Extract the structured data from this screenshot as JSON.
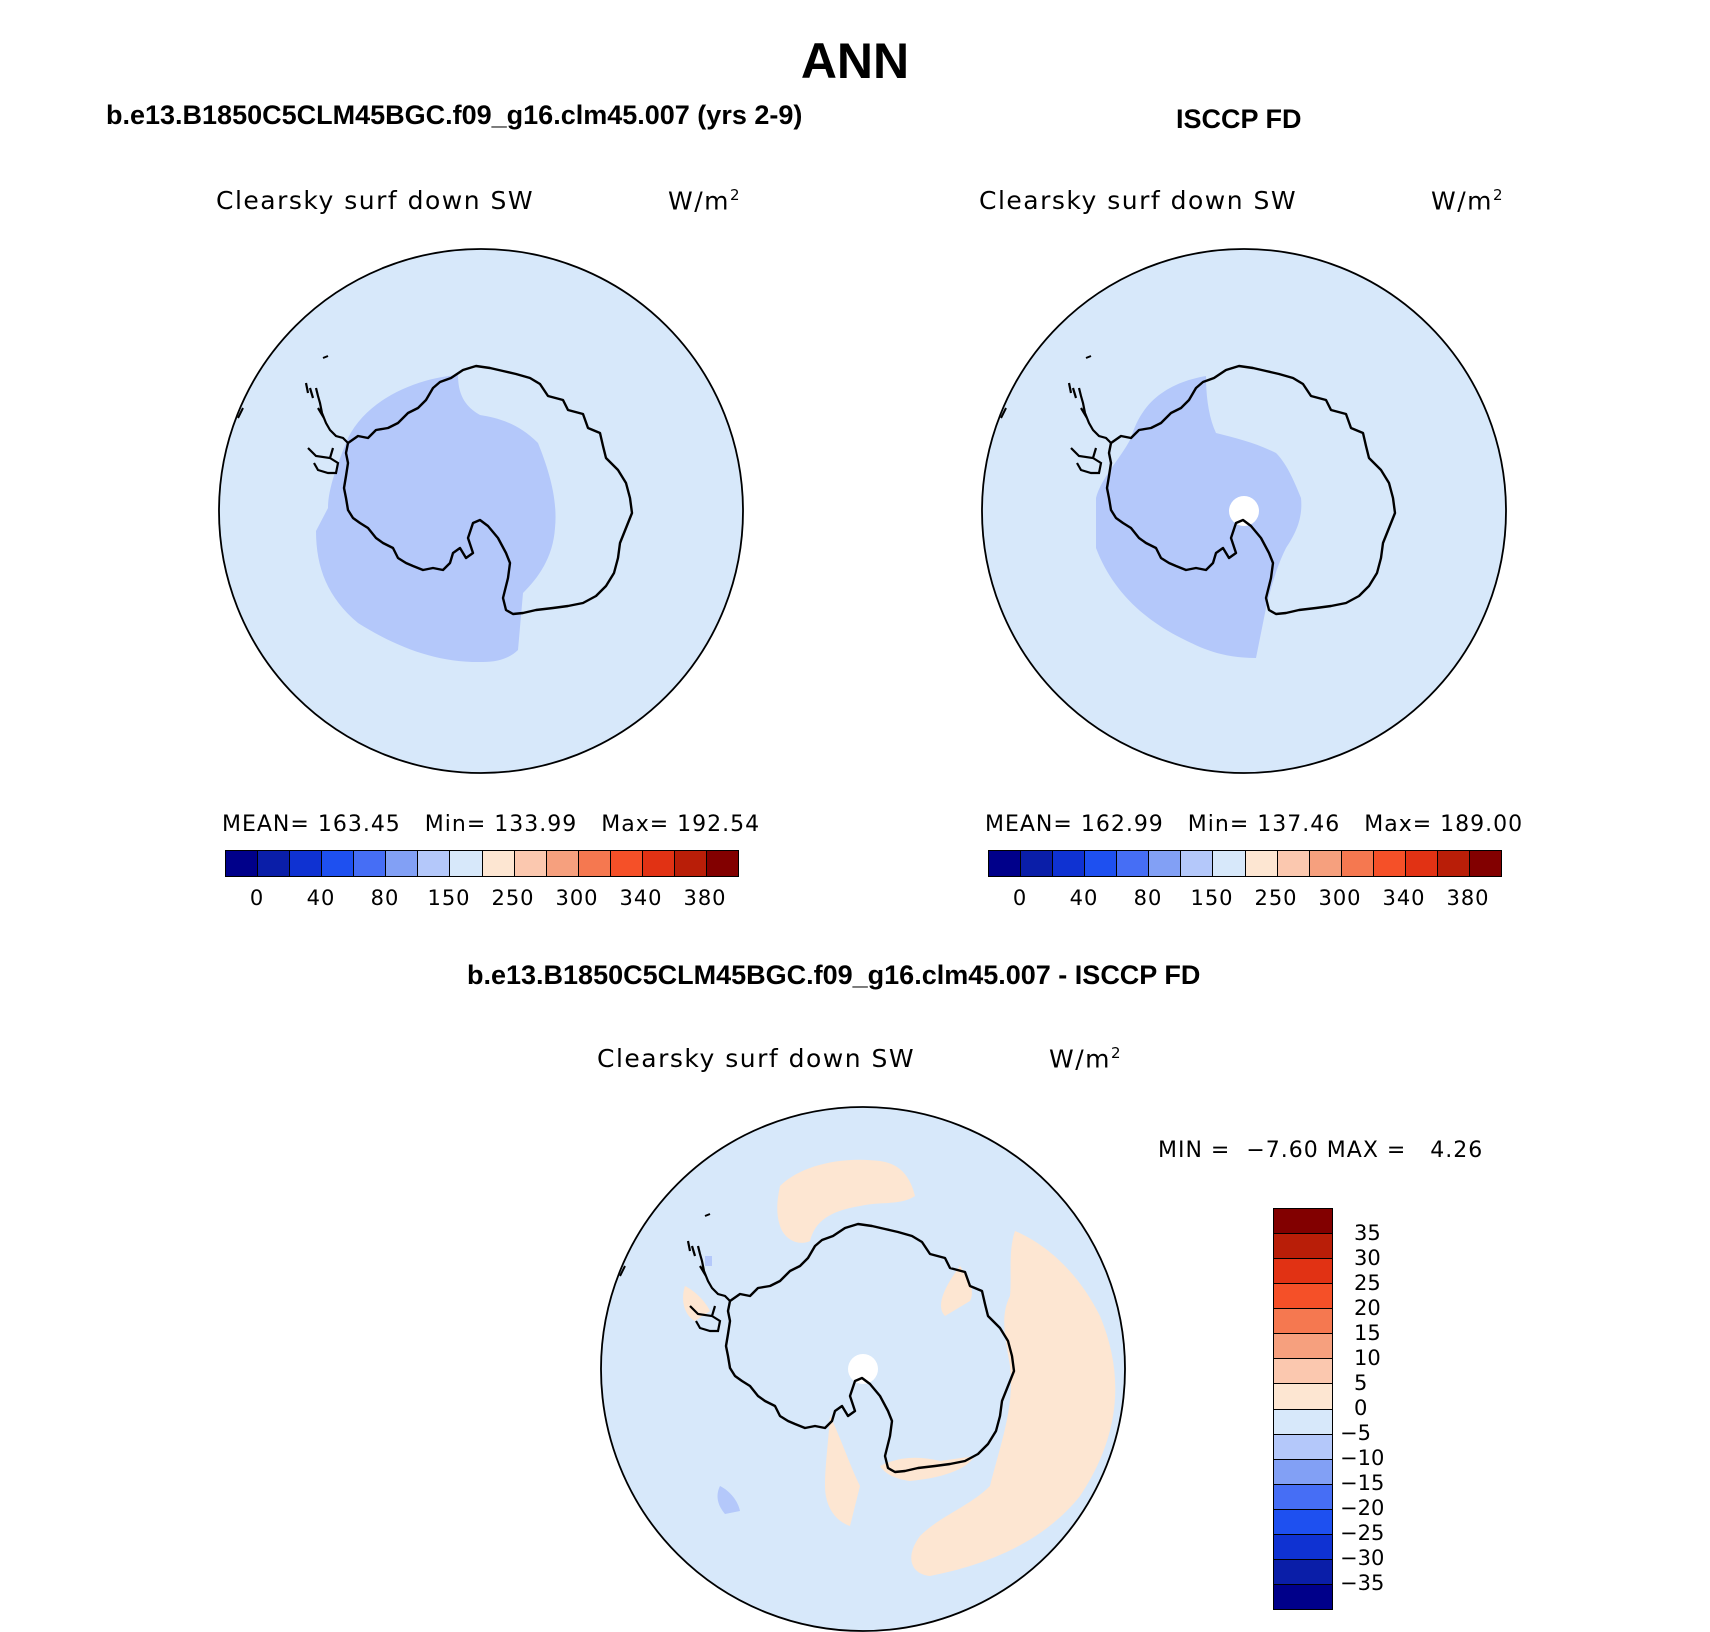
{
  "figure": {
    "title": "ANN"
  },
  "panels": [
    {
      "title": "b.e13.B1850C5CLM45BGC.f09_g16.clm45.007 (yrs 2-9)",
      "variable": "Clearsky surf down SW",
      "units_base": "W/m",
      "units_sup": "2",
      "stats": {
        "mean_label": "MEAN=",
        "mean": "163.45",
        "min_label": "Min=",
        "min": "133.99",
        "max_label": "Max=",
        "max": "192.54"
      },
      "colorbar_ticks": [
        "0",
        "40",
        "80",
        "150",
        "250",
        "300",
        "340",
        "380"
      ]
    },
    {
      "title": "ISCCP FD",
      "variable": "Clearsky surf down SW",
      "units_base": "W/m",
      "units_sup": "2",
      "stats": {
        "mean_label": "MEAN=",
        "mean": "162.99",
        "min_label": "Min=",
        "min": "137.46",
        "max_label": "Max=",
        "max": "189.00"
      },
      "colorbar_ticks": [
        "0",
        "40",
        "80",
        "150",
        "250",
        "300",
        "340",
        "380"
      ]
    },
    {
      "title": "b.e13.B1850C5CLM45BGC.f09_g16.clm45.007 - ISCCP FD",
      "variable": "Clearsky surf down SW",
      "units_base": "W/m",
      "units_sup": "2",
      "stats": {
        "min_label": "MIN =",
        "min": "−7.60",
        "max_label": "MAX =",
        "max": "4.26"
      },
      "colorbar_ticks": [
        "35",
        "30",
        "25",
        "20",
        "15",
        "10",
        "5",
        "0",
        "−5",
        "−10",
        "−15",
        "−20",
        "−25",
        "−30",
        "−35"
      ]
    }
  ],
  "colors": {
    "abs_palette": [
      "#00008a",
      "#0a1ea8",
      "#0f32d2",
      "#1e50f0",
      "#466ef5",
      "#82a0f5",
      "#b4c8fa",
      "#d7e8fa",
      "#fde6d2",
      "#fbc8af",
      "#f6a07e",
      "#f57850",
      "#f55028",
      "#e13214",
      "#b91e08",
      "#820000"
    ],
    "diff_palette": [
      "#820000",
      "#b91e08",
      "#e13214",
      "#f55028",
      "#f57850",
      "#f6a07e",
      "#fbc8af",
      "#fde6d2",
      "#d7e8fa",
      "#b4c8fa",
      "#82a0f5",
      "#466ef5",
      "#1e50f0",
      "#0f32d2",
      "#0a1ea8",
      "#00008a"
    ],
    "map_background": "#d7e8fa",
    "map_mid": "#b4c8fa",
    "map_warm": "#fde6d2"
  }
}
